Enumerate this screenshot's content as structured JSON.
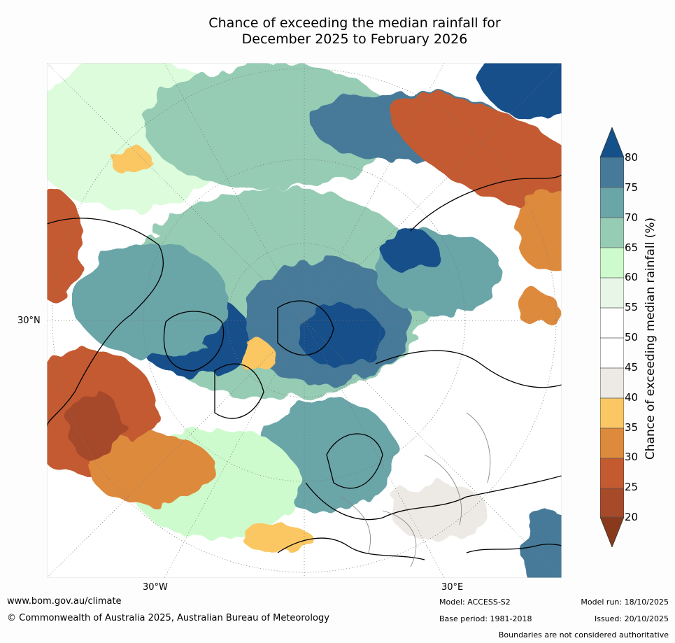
{
  "title": {
    "line1": "Chance of exceeding the median rainfall for",
    "line2": "December 2025 to February 2026"
  },
  "map": {
    "projection": "north-polar",
    "lat_label": "30°N",
    "lon_labels": [
      "30°W",
      "30°E"
    ]
  },
  "colorbar": {
    "title": "Chance of exceeding median rainfall (%)",
    "ticks": [
      "20",
      "25",
      "30",
      "35",
      "40",
      "45",
      "50",
      "55",
      "60",
      "65",
      "70",
      "75",
      "80"
    ],
    "colors": {
      "lt20": "#8a3a1c",
      "20-25": "#a64a2a",
      "25-30": "#c35a30",
      "30-35": "#de8a3c",
      "35-40": "#fac764",
      "40-45": "#edeae6",
      "45-50": "#ffffff",
      "50-55": "#ffffff",
      "55-60": "#e8f6e8",
      "60-65": "#cdfbcd",
      "65-70": "#96ccb4",
      "70-75": "#6aa5a8",
      "75-80": "#477a99",
      "gt80": "#14508a"
    }
  },
  "footer": {
    "url": "www.bom.gov.au/climate",
    "copyright": "© Commonwealth of Australia 2025, Australian Bureau of Meteorology",
    "model": "Model: ACCESS-S2",
    "base_period": "Base period: 1981-2018",
    "model_run": "Model run: 18/10/2025",
    "issued": "Issued: 20/10/2025",
    "disclaimer": "Boundaries are not considered authoritative"
  }
}
